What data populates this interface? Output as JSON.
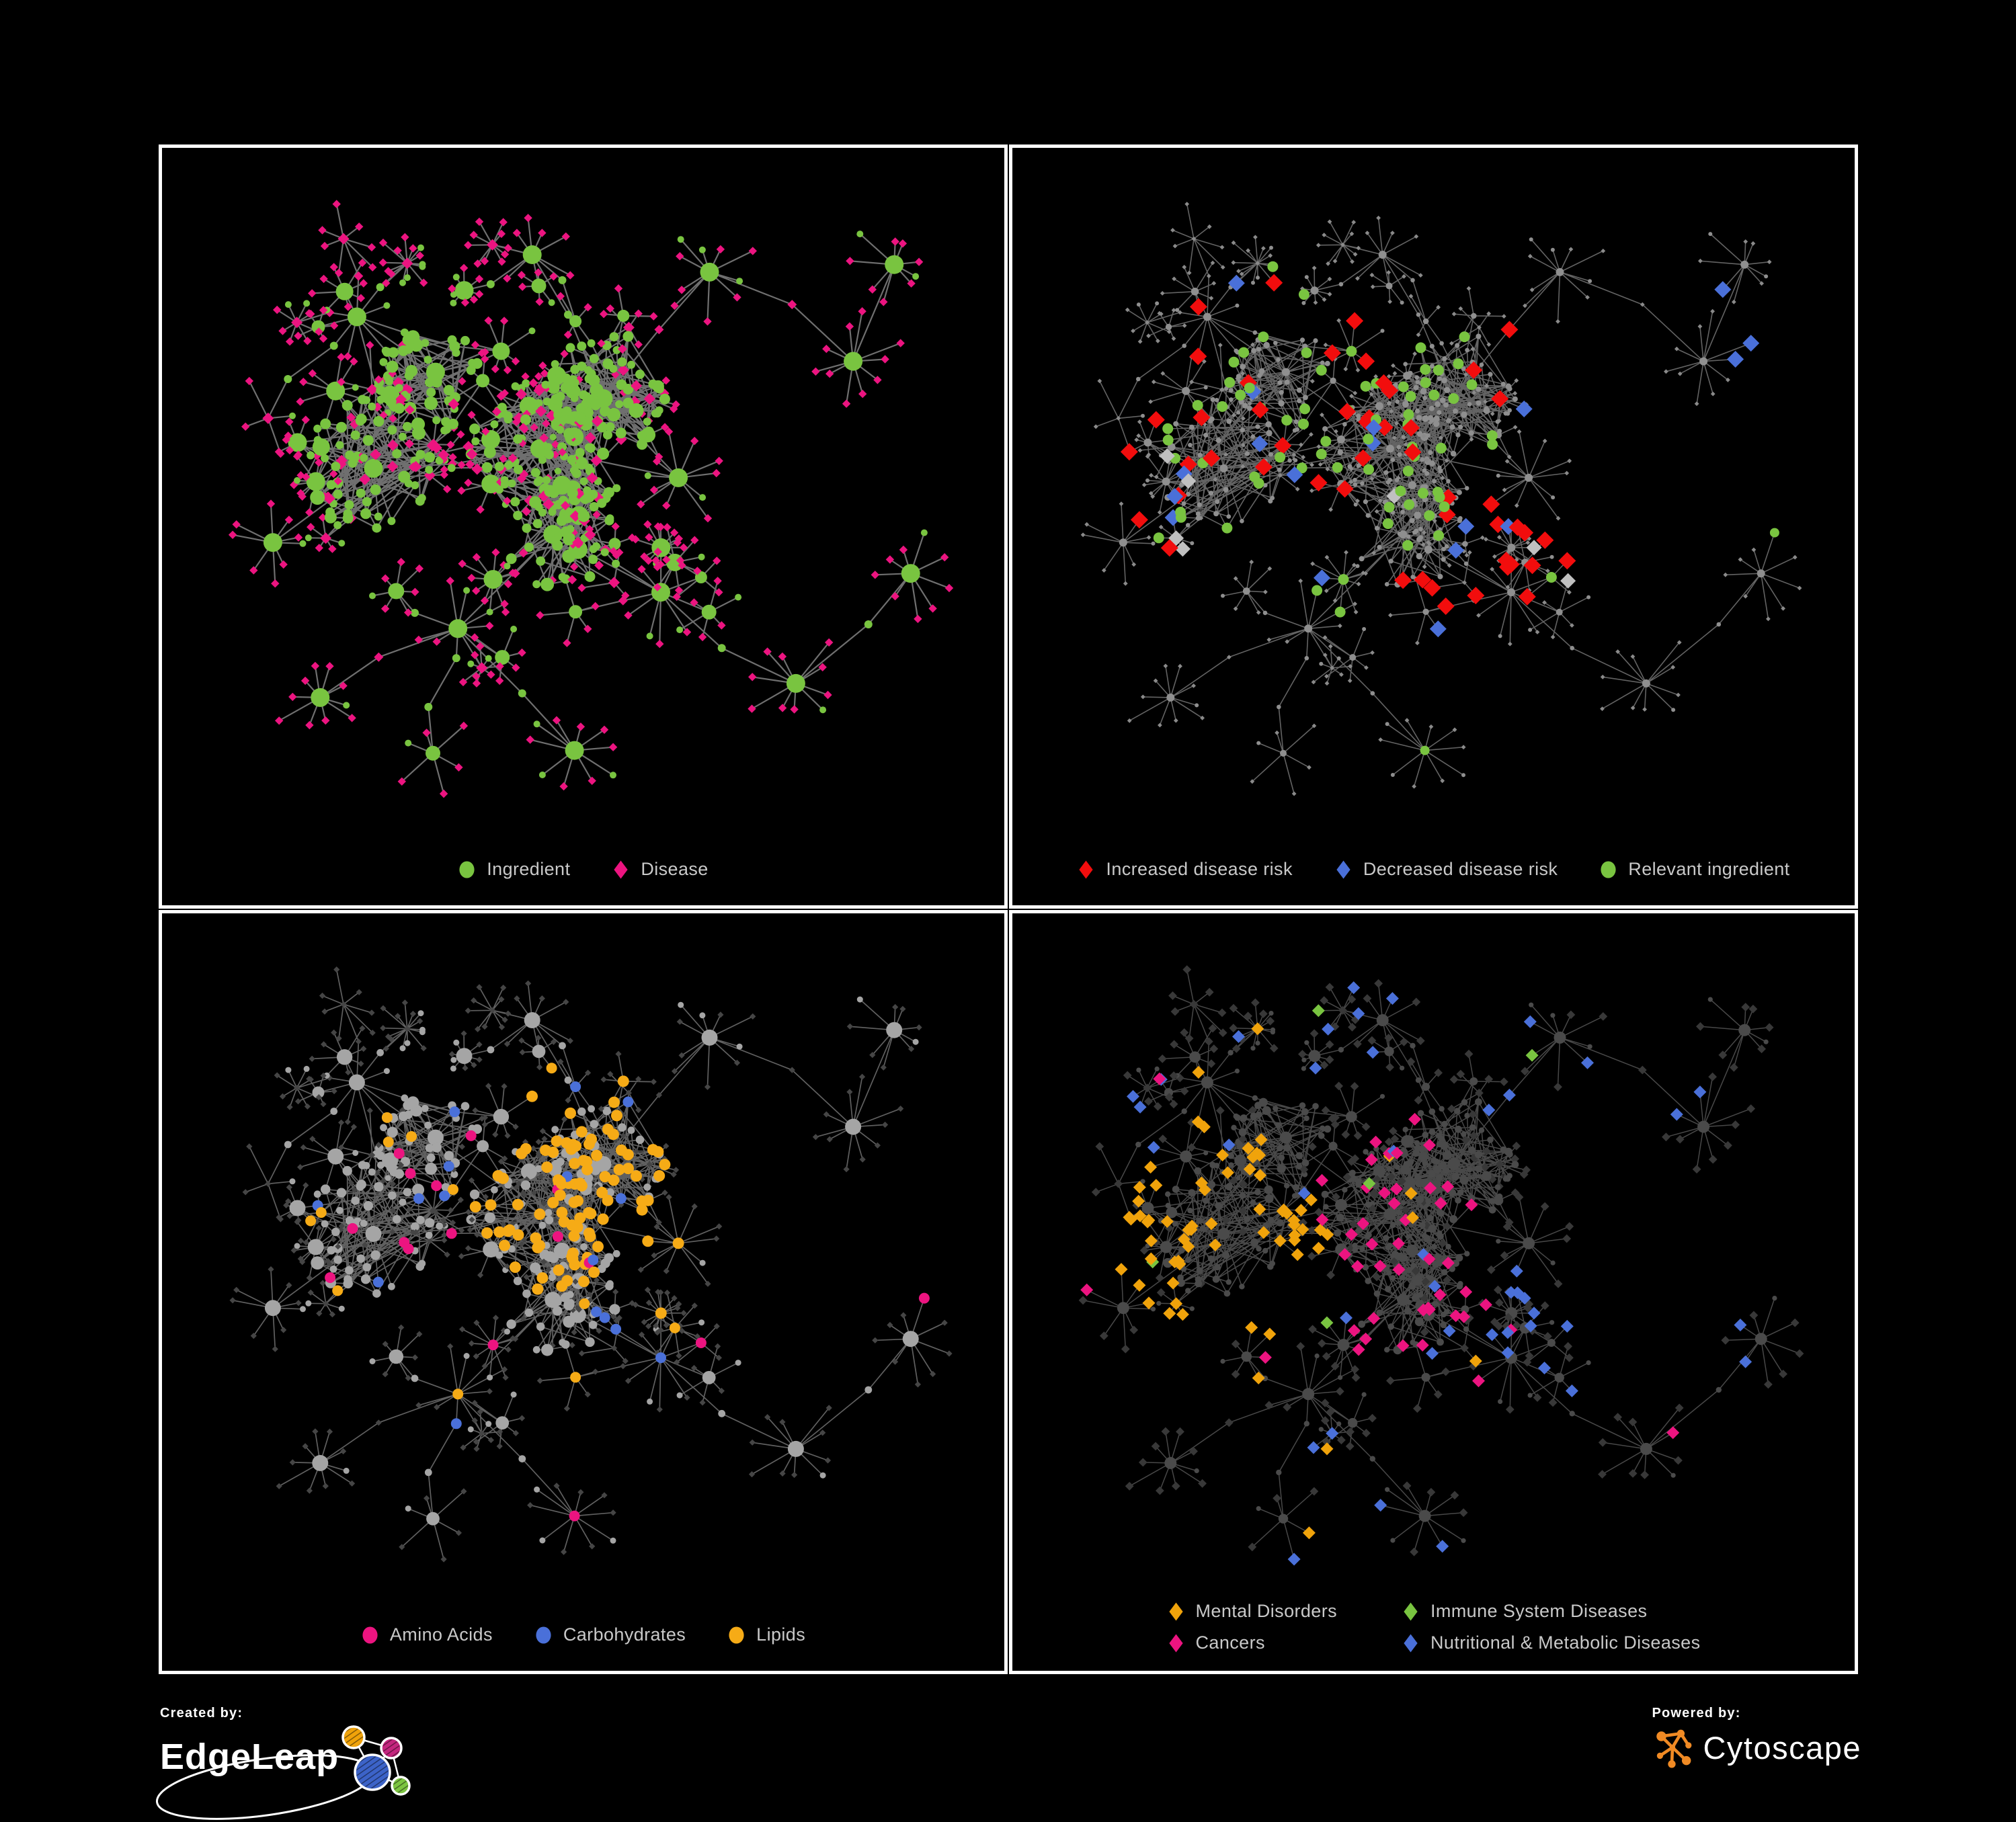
{
  "background": "#000000",
  "panel_border_color": "#ffffff",
  "legend_text_color": "#c9c9c9",
  "panels": {
    "ingredient_disease": {
      "legend": [
        {
          "label": "Ingredient",
          "shape": "circle",
          "color": "#79c440"
        },
        {
          "label": "Disease",
          "shape": "diamond",
          "color": "#ec1480"
        }
      ]
    },
    "disease_risk": {
      "legend": [
        {
          "label": "Increased disease risk",
          "shape": "diamond",
          "color": "#f20d0d"
        },
        {
          "label": "Decreased disease risk",
          "shape": "diamond",
          "color": "#4a70d9"
        },
        {
          "label": "Relevant ingredient",
          "shape": "circle",
          "color": "#79c440"
        }
      ]
    },
    "nutrient_classes": {
      "legend": [
        {
          "label": "Amino Acids",
          "shape": "circle",
          "color": "#ec1480"
        },
        {
          "label": "Carbohydrates",
          "shape": "circle",
          "color": "#4a70d9"
        },
        {
          "label": "Lipids",
          "shape": "circle",
          "color": "#f6ab16"
        }
      ]
    },
    "disease_classes": {
      "legend": [
        {
          "label": "Mental Disorders",
          "shape": "diamond",
          "color": "#f0a30b"
        },
        {
          "label": "Cancers",
          "shape": "diamond",
          "color": "#ec1480"
        },
        {
          "label": "Immune System Diseases",
          "shape": "diamond",
          "color": "#79c440"
        },
        {
          "label": "Nutritional & Metabolic Diseases",
          "shape": "diamond",
          "color": "#4a70d9"
        }
      ]
    }
  },
  "network_style": {
    "p1_edge": "#787878",
    "p2_edge": "#686868",
    "p3_edge": "#6a6a6a",
    "p4_edge": "#555555",
    "p2_base_node": "#8f8f8f",
    "p2_base_diamond": "#8a8a8a",
    "p2_highlight_gray": "#c0c0c0",
    "p3_base_circle": "#a5a5a5",
    "p3_leaf_diamond": "#454545",
    "p4_base_diamond": "#383838",
    "p4_base_circle": "#4a4a4a"
  },
  "footer": {
    "created_by": "Created by:",
    "brand_left": "EdgeLeap",
    "powered_by": "Powered by:",
    "brand_right": "Cytoscape",
    "edgeleap_logo_colors": {
      "orange": "#f0a30a",
      "magenta": "#c4257e",
      "blue": "#3c63c8",
      "green": "#7cc540"
    },
    "cytoscape_logo_color": "#f08a24"
  }
}
